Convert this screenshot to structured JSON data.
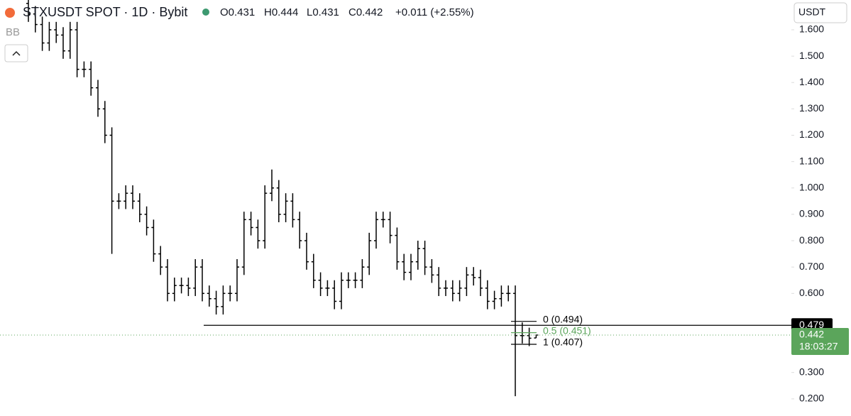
{
  "header": {
    "title": "STXUSDT SPOT · 1D · Bybit",
    "ohlc": [
      "O0.431",
      "H0.444",
      "L0.431",
      "C0.442",
      "+0.011 (+2.55%)"
    ],
    "indicator": "BB",
    "currency": "USDT"
  },
  "chart_data": {
    "type": "ohlc",
    "color": "#000000",
    "open": [
      1.7,
      1.66,
      1.62,
      1.55,
      1.6,
      1.58,
      1.52,
      1.6,
      1.45,
      1.45,
      1.38,
      1.3,
      1.2,
      0.95,
      0.95,
      0.98,
      0.95,
      0.9,
      0.85,
      0.75,
      0.7,
      0.6,
      0.63,
      0.63,
      0.62,
      0.7,
      0.6,
      0.58,
      0.55,
      0.6,
      0.6,
      0.7,
      0.88,
      0.85,
      0.8,
      0.98,
      1.0,
      0.9,
      0.95,
      0.88,
      0.8,
      0.72,
      0.65,
      0.62,
      0.62,
      0.57,
      0.65,
      0.65,
      0.65,
      0.7,
      0.8,
      0.88,
      0.88,
      0.82,
      0.72,
      0.68,
      0.72,
      0.77,
      0.7,
      0.67,
      0.62,
      0.62,
      0.6,
      0.62,
      0.67,
      0.66,
      0.62,
      0.57,
      0.58,
      0.6,
      0.6,
      0.44,
      0.44,
      0.431
    ],
    "high": [
      1.73,
      1.69,
      1.65,
      1.63,
      1.63,
      1.61,
      1.63,
      1.63,
      1.48,
      1.48,
      1.41,
      1.33,
      1.23,
      0.98,
      1.01,
      1.01,
      0.98,
      0.93,
      0.88,
      0.78,
      0.73,
      0.66,
      0.66,
      0.66,
      0.73,
      0.73,
      0.63,
      0.61,
      0.63,
      0.63,
      0.73,
      0.91,
      0.91,
      0.88,
      1.01,
      1.07,
      1.03,
      0.98,
      0.98,
      0.91,
      0.83,
      0.75,
      0.68,
      0.65,
      0.65,
      0.68,
      0.68,
      0.68,
      0.73,
      0.83,
      0.91,
      0.91,
      0.91,
      0.85,
      0.75,
      0.75,
      0.8,
      0.8,
      0.73,
      0.7,
      0.65,
      0.65,
      0.65,
      0.7,
      0.7,
      0.69,
      0.65,
      0.61,
      0.63,
      0.63,
      0.63,
      0.49,
      0.47,
      0.444
    ],
    "low": [
      1.63,
      1.59,
      1.52,
      1.52,
      1.55,
      1.49,
      1.49,
      1.42,
      1.42,
      1.35,
      1.27,
      1.17,
      0.75,
      0.92,
      0.92,
      0.92,
      0.87,
      0.82,
      0.72,
      0.67,
      0.57,
      0.57,
      0.6,
      0.59,
      0.59,
      0.57,
      0.55,
      0.52,
      0.52,
      0.57,
      0.57,
      0.67,
      0.82,
      0.77,
      0.77,
      0.95,
      0.87,
      0.87,
      0.85,
      0.77,
      0.69,
      0.62,
      0.59,
      0.59,
      0.54,
      0.54,
      0.62,
      0.62,
      0.62,
      0.67,
      0.77,
      0.85,
      0.79,
      0.69,
      0.65,
      0.65,
      0.69,
      0.67,
      0.64,
      0.59,
      0.59,
      0.57,
      0.57,
      0.59,
      0.63,
      0.59,
      0.54,
      0.54,
      0.55,
      0.57,
      0.21,
      0.41,
      0.4,
      0.431
    ],
    "close": [
      1.66,
      1.62,
      1.55,
      1.6,
      1.58,
      1.52,
      1.6,
      1.45,
      1.45,
      1.38,
      1.3,
      1.2,
      0.95,
      0.95,
      0.98,
      0.95,
      0.9,
      0.85,
      0.75,
      0.7,
      0.6,
      0.63,
      0.63,
      0.62,
      0.7,
      0.6,
      0.58,
      0.55,
      0.6,
      0.6,
      0.7,
      0.88,
      0.85,
      0.8,
      0.98,
      1.0,
      0.9,
      0.95,
      0.88,
      0.8,
      0.72,
      0.65,
      0.62,
      0.62,
      0.57,
      0.65,
      0.65,
      0.65,
      0.7,
      0.8,
      0.88,
      0.88,
      0.82,
      0.72,
      0.68,
      0.72,
      0.77,
      0.7,
      0.67,
      0.62,
      0.62,
      0.6,
      0.62,
      0.67,
      0.66,
      0.62,
      0.57,
      0.58,
      0.6,
      0.6,
      0.44,
      0.44,
      0.43,
      0.442
    ],
    "ylim": [
      0.135,
      1.713
    ],
    "yticks": [
      {
        "value": 0.2,
        "label": "0.200"
      },
      {
        "value": 0.3,
        "label": "0.300"
      },
      {
        "value": 0.6,
        "label": "0.600"
      },
      {
        "value": 0.7,
        "label": "0.700"
      },
      {
        "value": 0.8,
        "label": "0.800"
      },
      {
        "value": 0.9,
        "label": "0.900"
      },
      {
        "value": 1.0,
        "label": "1.000"
      },
      {
        "value": 1.1,
        "label": "1.100"
      },
      {
        "value": 1.2,
        "label": "1.200"
      },
      {
        "value": 1.3,
        "label": "1.300"
      },
      {
        "value": 1.4,
        "label": "1.400"
      },
      {
        "value": 1.5,
        "label": "1.500"
      },
      {
        "value": 1.6,
        "label": "1.600"
      }
    ],
    "horizontal_line": {
      "value": 0.479,
      "label": "0.479"
    },
    "last_price": {
      "value": 0.442,
      "label": "0.442",
      "countdown": "18:03:27",
      "color": "#5ba55b"
    },
    "fib_levels": [
      {
        "value": 0.494,
        "label": "0 (0.494)",
        "color": "#000000"
      },
      {
        "value": 0.451,
        "label": "0.5 (0.451)",
        "color": "#5ba55b"
      },
      {
        "value": 0.407,
        "label": "1 (0.407)",
        "color": "#000000"
      }
    ]
  }
}
